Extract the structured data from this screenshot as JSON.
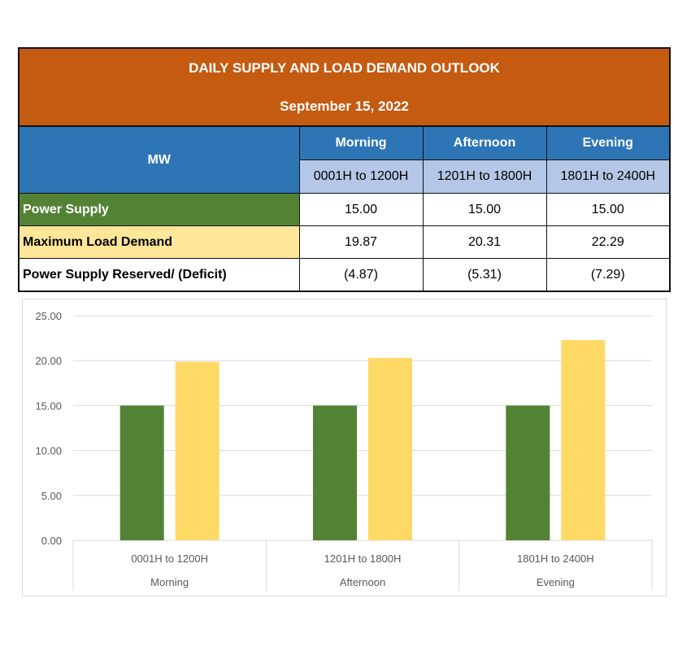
{
  "table": {
    "title": "DAILY SUPPLY AND LOAD DEMAND OUTLOOK",
    "date": "September 15, 2022",
    "corner": "MW",
    "periods": [
      "Morning",
      "Afternoon",
      "Evening"
    ],
    "ranges": [
      "0001H to 1200H",
      "1201H to 1800H",
      "1801H to 2400H"
    ],
    "rows": [
      {
        "label": "Power Supply",
        "values": [
          "15.00",
          "15.00",
          "15.00"
        ]
      },
      {
        "label": "Maximum Load Demand",
        "values": [
          "19.87",
          "20.31",
          "22.29"
        ]
      },
      {
        "label": "Power Supply Reserved/ (Deficit)",
        "values": [
          "(4.87)",
          "(5.31)",
          "(7.29)"
        ]
      }
    ]
  },
  "chart_data": {
    "type": "bar",
    "categories": [
      [
        "0001H to 1200H",
        "Morning"
      ],
      [
        "1201H to 1800H",
        "Afternoon"
      ],
      [
        "1801H to 2400H",
        "Evening"
      ]
    ],
    "series": [
      {
        "values": [
          15.0,
          15.0,
          15.0
        ],
        "color": "#548235"
      },
      {
        "values": [
          19.87,
          20.31,
          22.29
        ],
        "color": "#ffd966"
      }
    ],
    "ylim": [
      0,
      25
    ],
    "yticks": [
      "0.00",
      "5.00",
      "10.00",
      "15.00",
      "20.00",
      "25.00"
    ],
    "grid": true
  }
}
